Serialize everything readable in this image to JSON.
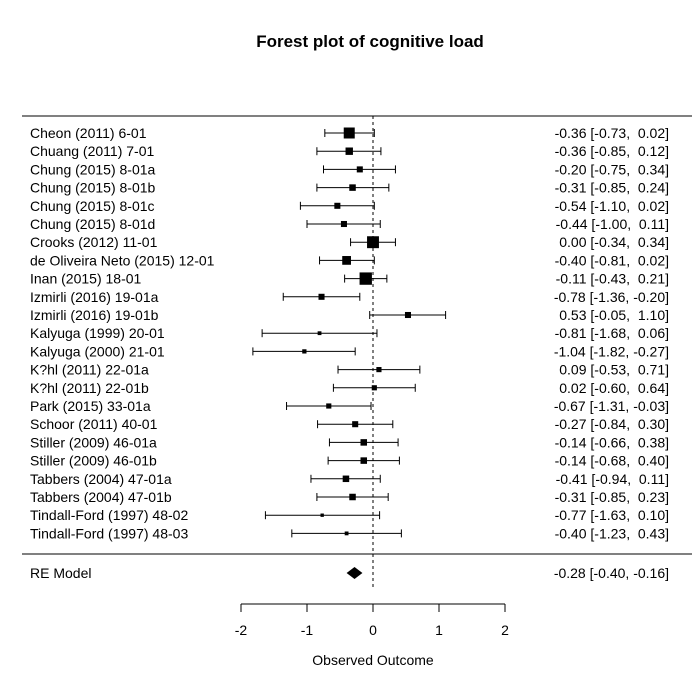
{
  "chart_data": {
    "type": "forest",
    "title": "Forest plot of cognitive load",
    "xlabel": "Observed Outcome",
    "xlim": [
      -2,
      2
    ],
    "xticks": [
      -2,
      -1,
      0,
      1,
      2
    ],
    "xtick_labels": [
      "-2",
      "-1",
      "0",
      "1",
      "2"
    ],
    "reference_line": 0,
    "studies": [
      {
        "label": "Cheon (2011) 6-01",
        "estimate": -0.36,
        "ci_low": -0.73,
        "ci_high": 0.02,
        "ci_text": "-0.36 [-0.73,  0.02]",
        "weight": 1.0
      },
      {
        "label": "Chuang (2011) 7-01",
        "estimate": -0.36,
        "ci_low": -0.85,
        "ci_high": 0.12,
        "ci_text": "-0.36 [-0.85,  0.12]",
        "weight": 0.6
      },
      {
        "label": "Chung (2015) 8-01a",
        "estimate": -0.2,
        "ci_low": -0.75,
        "ci_high": 0.34,
        "ci_text": "-0.20 [-0.75,  0.34]",
        "weight": 0.45
      },
      {
        "label": "Chung (2015) 8-01b",
        "estimate": -0.31,
        "ci_low": -0.85,
        "ci_high": 0.24,
        "ci_text": "-0.31 [-0.85,  0.24]",
        "weight": 0.5
      },
      {
        "label": "Chung (2015) 8-01c",
        "estimate": -0.54,
        "ci_low": -1.1,
        "ci_high": 0.02,
        "ci_text": "-0.54 [-1.10,  0.02]",
        "weight": 0.45
      },
      {
        "label": "Chung (2015) 8-01d",
        "estimate": -0.44,
        "ci_low": -1.0,
        "ci_high": 0.11,
        "ci_text": "-0.44 [-1.00,  0.11]",
        "weight": 0.45
      },
      {
        "label": "Crooks (2012) 11-01",
        "estimate": 0.0,
        "ci_low": -0.34,
        "ci_high": 0.34,
        "ci_text": " 0.00 [-0.34,  0.34]",
        "weight": 1.1
      },
      {
        "label": "de Oliveira Neto (2015) 12-01",
        "estimate": -0.4,
        "ci_low": -0.81,
        "ci_high": 0.02,
        "ci_text": "-0.40 [-0.81,  0.02]",
        "weight": 0.75
      },
      {
        "label": "Inan (2015) 18-01",
        "estimate": -0.11,
        "ci_low": -0.43,
        "ci_high": 0.21,
        "ci_text": "-0.11 [-0.43,  0.21]",
        "weight": 1.15
      },
      {
        "label": "Izmirli (2016) 19-01a",
        "estimate": -0.78,
        "ci_low": -1.36,
        "ci_high": -0.2,
        "ci_text": "-0.78 [-1.36, -0.20]",
        "weight": 0.45
      },
      {
        "label": "Izmirli (2016) 19-01b",
        "estimate": 0.53,
        "ci_low": -0.05,
        "ci_high": 1.1,
        "ci_text": " 0.53 [-0.05,  1.10]",
        "weight": 0.45
      },
      {
        "label": "Kalyuga (1999) 20-01",
        "estimate": -0.81,
        "ci_low": -1.68,
        "ci_high": 0.06,
        "ci_text": "-0.81 [-1.68,  0.06]",
        "weight": 0.2
      },
      {
        "label": "Kalyuga (2000) 21-01",
        "estimate": -1.04,
        "ci_low": -1.82,
        "ci_high": -0.27,
        "ci_text": "-1.04 [-1.82, -0.27]",
        "weight": 0.25
      },
      {
        "label": "K?hl (2011) 22-01a",
        "estimate": 0.09,
        "ci_low": -0.53,
        "ci_high": 0.71,
        "ci_text": " 0.09 [-0.53,  0.71]",
        "weight": 0.35
      },
      {
        "label": "K?hl (2011) 22-01b",
        "estimate": 0.02,
        "ci_low": -0.6,
        "ci_high": 0.64,
        "ci_text": " 0.02 [-0.60,  0.64]",
        "weight": 0.35
      },
      {
        "label": "Park (2015) 33-01a",
        "estimate": -0.67,
        "ci_low": -1.31,
        "ci_high": -0.03,
        "ci_text": "-0.67 [-1.31, -0.03]",
        "weight": 0.35
      },
      {
        "label": "Schoor (2011) 40-01",
        "estimate": -0.27,
        "ci_low": -0.84,
        "ci_high": 0.3,
        "ci_text": "-0.27 [-0.84,  0.30]",
        "weight": 0.45
      },
      {
        "label": "Stiller (2009) 46-01a",
        "estimate": -0.14,
        "ci_low": -0.66,
        "ci_high": 0.38,
        "ci_text": "-0.14 [-0.66,  0.38]",
        "weight": 0.5
      },
      {
        "label": "Stiller (2009) 46-01b",
        "estimate": -0.14,
        "ci_low": -0.68,
        "ci_high": 0.4,
        "ci_text": "-0.14 [-0.68,  0.40]",
        "weight": 0.5
      },
      {
        "label": "Tabbers (2004) 47-01a",
        "estimate": -0.41,
        "ci_low": -0.94,
        "ci_high": 0.11,
        "ci_text": "-0.41 [-0.94,  0.11]",
        "weight": 0.5
      },
      {
        "label": "Tabbers (2004) 47-01b",
        "estimate": -0.31,
        "ci_low": -0.85,
        "ci_high": 0.23,
        "ci_text": "-0.31 [-0.85,  0.23]",
        "weight": 0.5
      },
      {
        "label": "Tindall-Ford (1997) 48-02",
        "estimate": -0.77,
        "ci_low": -1.63,
        "ci_high": 0.1,
        "ci_text": "-0.77 [-1.63,  0.10]",
        "weight": 0.15
      },
      {
        "label": "Tindall-Ford (1997) 48-03",
        "estimate": -0.4,
        "ci_low": -1.23,
        "ci_high": 0.43,
        "ci_text": "-0.40 [-1.23,  0.43]",
        "weight": 0.2
      }
    ],
    "summary": {
      "label": "RE Model",
      "estimate": -0.28,
      "ci_low": -0.4,
      "ci_high": -0.16,
      "ci_text": "-0.28 [-0.40, -0.16]"
    },
    "colors": {
      "ink": "#000000",
      "background": "#ffffff"
    }
  }
}
